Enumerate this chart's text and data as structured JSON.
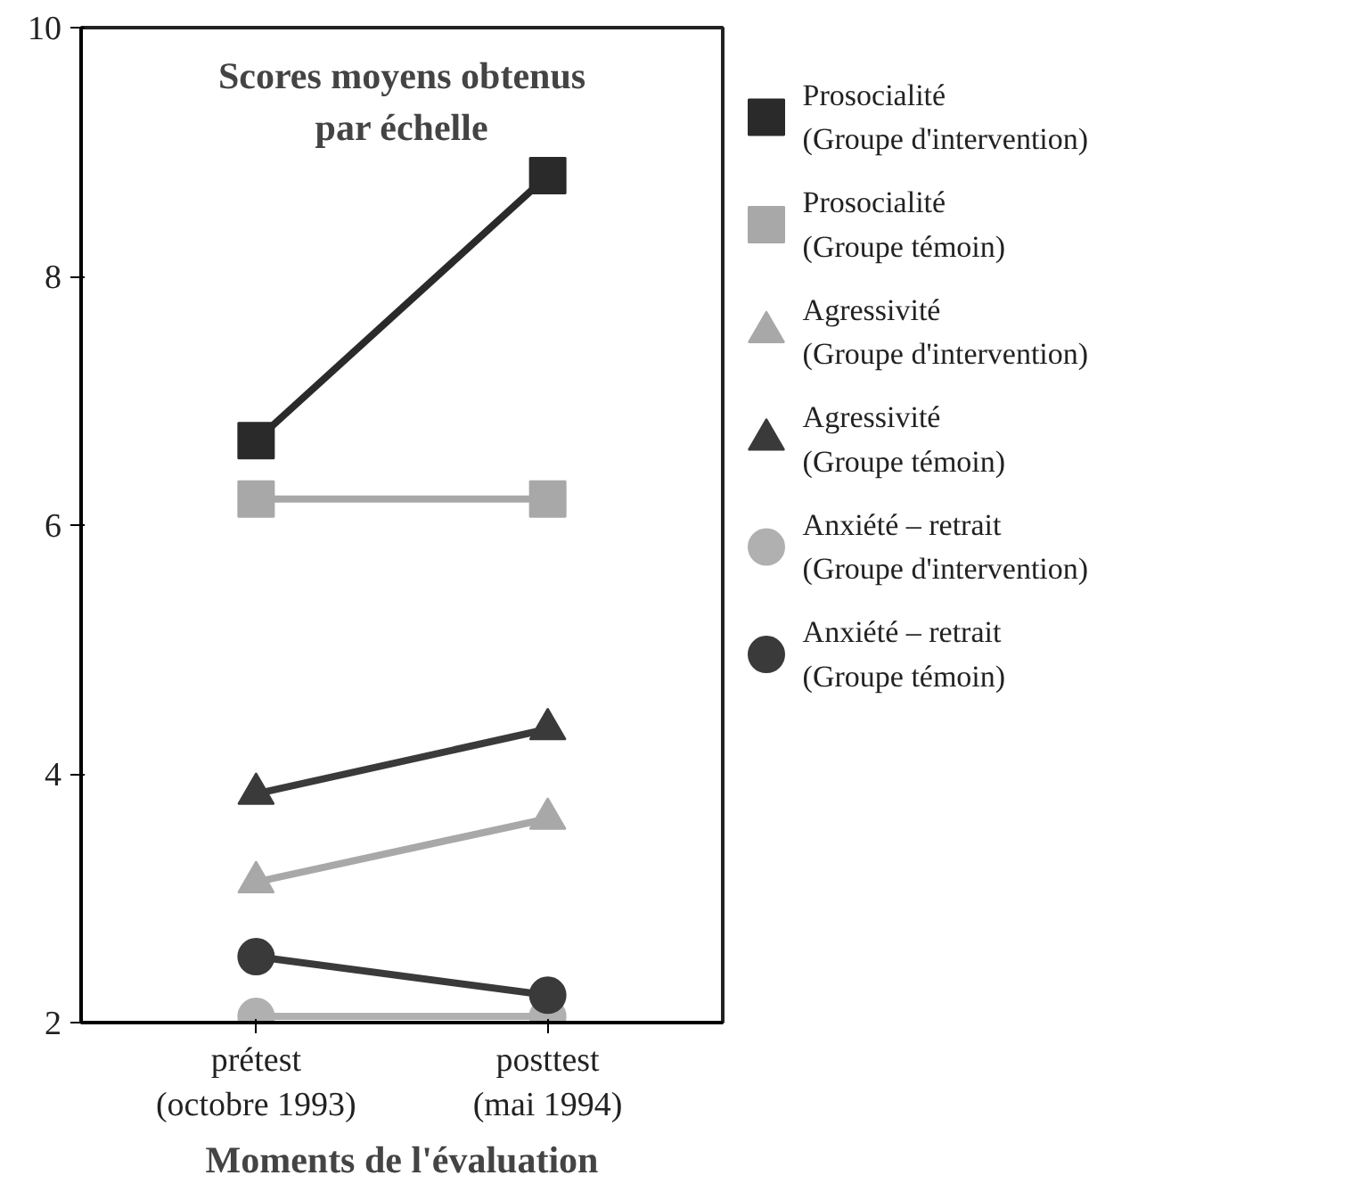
{
  "chart_data": {
    "type": "line",
    "title": "Scores moyens obtenus\npar échelle",
    "xlabel": "Moments de l'évaluation",
    "categories": [
      "prétest\n(octobre 1993)",
      "posttest\n(mai 1994)"
    ],
    "ylim": [
      2,
      10
    ],
    "yticks": [
      2,
      4,
      6,
      8,
      10
    ],
    "grid": false,
    "legend": "right",
    "series": [
      {
        "name": "Prosocialité\n(Groupe d'intervention)",
        "color": "#2a2a2a",
        "marker": "square",
        "values": [
          6.68,
          8.81
        ]
      },
      {
        "name": "Prosocialité\n(Groupe témoin)",
        "color": "#a8a8a8",
        "marker": "square",
        "values": [
          6.21,
          6.21
        ]
      },
      {
        "name": "Agressivité\n(Groupe d'intervention)",
        "color": "#a8a8a8",
        "marker": "triangle",
        "values": [
          3.13,
          3.64
        ]
      },
      {
        "name": "Agressivité\n(Groupe témoin)",
        "color": "#3a3a3a",
        "marker": "triangle",
        "values": [
          3.84,
          4.36
        ]
      },
      {
        "name": "Anxiété – retrait\n(Groupe d'intervention)",
        "color": "#b0b0b0",
        "marker": "circle",
        "values": [
          2.05,
          2.05
        ]
      },
      {
        "name": "Anxiété – retrait\n(Groupe témoin)",
        "color": "#3a3a3a",
        "marker": "circle",
        "values": [
          2.53,
          2.22
        ]
      }
    ]
  }
}
